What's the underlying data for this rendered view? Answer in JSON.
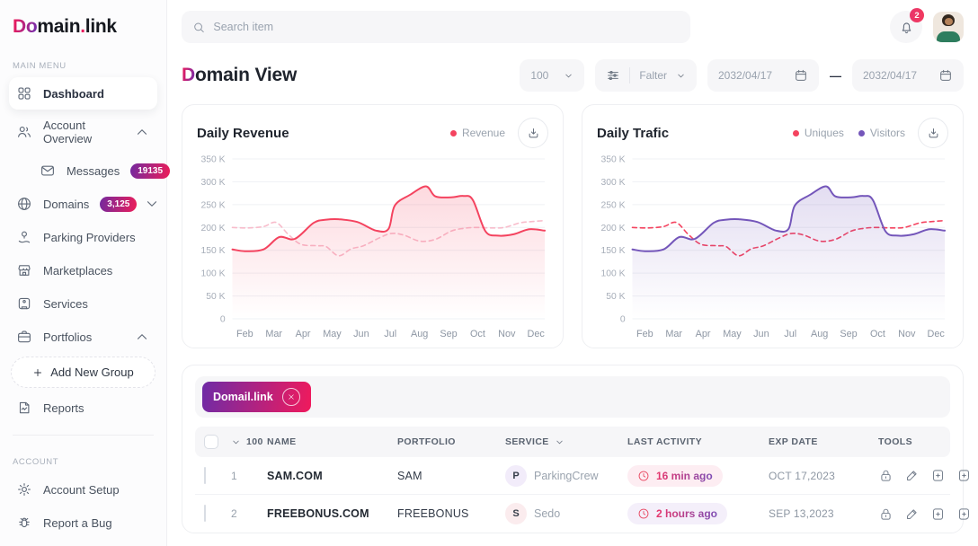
{
  "brand": {
    "logo_grad": "Do",
    "logo_mid": "main",
    "logo_dot": ".",
    "logo_end": "link"
  },
  "topbar": {
    "search_placeholder": "Search item",
    "notification_count": "2"
  },
  "sidebar": {
    "main_menu_label": "MAIN MENU",
    "account_label": "ACCOUNT",
    "dashboard": "Dashboard",
    "account_overview": "Account Overview",
    "messages": "Messages",
    "messages_badge": "19135",
    "domains": "Domains",
    "domains_badge": "3,125",
    "parking_providers": "Parking Providers",
    "marketplaces": "Marketplaces",
    "services": "Services",
    "portfolios": "Portfolios",
    "add_new_group": "Add New Group",
    "reports": "Reports",
    "account_setup": "Account Setup",
    "report_a_bug": "Report a Bug"
  },
  "page": {
    "title_grad": "D",
    "title_rest": "omain View"
  },
  "controls": {
    "page_size": "100",
    "filter_label": "Falter",
    "date_from": "2032/04/17",
    "date_separator": "—",
    "date_to": "2032/04/17"
  },
  "chart_data": [
    {
      "type": "line",
      "title": "Daily Revenue",
      "unit": "K",
      "ylim": [
        0,
        350
      ],
      "y_ticks": [
        "350 K",
        "300 K",
        "250 K",
        "200 K",
        "150 K",
        "100 K",
        "50 K",
        "0"
      ],
      "x_ticks": [
        "Feb",
        "Mar",
        "Apr",
        "May",
        "Jun",
        "Jul",
        "Aug",
        "Sep",
        "Oct",
        "Nov",
        "Dec"
      ],
      "grid": true,
      "legend": [
        {
          "label": "Revenue",
          "color": "#F4435F"
        }
      ],
      "series": [
        {
          "name": "Revenue",
          "style": "solid",
          "color": "#F4435F",
          "fill_from": "rgba(244,67,95,0.20)",
          "fill_to": "rgba(244,67,95,0)",
          "x": [
            0,
            0.4,
            1,
            1.5,
            2,
            2.6,
            3,
            3.4,
            4,
            4.6,
            5,
            5.2,
            5.7,
            6.2,
            6.5,
            7,
            7.4,
            7.7,
            8.1,
            8.5,
            9,
            9.5,
            10
          ],
          "values": [
            152,
            148,
            152,
            179,
            175,
            210,
            217,
            218,
            212,
            193,
            197,
            248,
            272,
            290,
            268,
            266,
            269,
            260,
            192,
            182,
            185,
            196,
            193
          ]
        },
        {
          "name": "",
          "style": "dashed",
          "color": "#F8BCCB",
          "x": [
            0,
            0.5,
            1,
            1.4,
            1.8,
            2.2,
            2.7,
            3,
            3.4,
            3.8,
            4.2,
            4.7,
            5.1,
            5.5,
            6,
            6.5,
            7,
            7.4,
            7.8,
            8.3,
            8.7,
            9.2,
            9.6,
            10
          ],
          "values": [
            200,
            199,
            202,
            211,
            184,
            163,
            160,
            158,
            138,
            153,
            160,
            177,
            187,
            183,
            170,
            174,
            192,
            198,
            200,
            199,
            200,
            210,
            213,
            215
          ]
        }
      ]
    },
    {
      "type": "line",
      "title": "Daily Trafic",
      "unit": "K",
      "ylim": [
        0,
        350
      ],
      "y_ticks": [
        "350 K",
        "300 K",
        "250 K",
        "200 K",
        "150 K",
        "100 K",
        "50 K",
        "0"
      ],
      "x_ticks": [
        "Feb",
        "Mar",
        "Apr",
        "May",
        "Jun",
        "Jul",
        "Aug",
        "Sep",
        "Oct",
        "Nov",
        "Dec"
      ],
      "grid": true,
      "legend": [
        {
          "label": "Uniques",
          "color": "#F4435F"
        },
        {
          "label": "Visitors",
          "color": "#7456BA"
        }
      ],
      "series": [
        {
          "name": "Visitors",
          "style": "solid",
          "color": "#7456BA",
          "fill_from": "rgba(116,86,186,0.20)",
          "fill_to": "rgba(116,86,186,0)",
          "x": [
            0,
            0.4,
            1,
            1.5,
            2,
            2.6,
            3,
            3.4,
            4,
            4.6,
            5,
            5.2,
            5.7,
            6.2,
            6.5,
            7,
            7.4,
            7.7,
            8.1,
            8.5,
            9,
            9.5,
            10
          ],
          "values": [
            152,
            148,
            152,
            179,
            175,
            210,
            217,
            218,
            212,
            193,
            197,
            248,
            272,
            290,
            268,
            266,
            269,
            260,
            192,
            182,
            185,
            196,
            193
          ]
        },
        {
          "name": "Uniques",
          "style": "dashed",
          "color": "#F4435F",
          "x": [
            0,
            0.5,
            1,
            1.4,
            1.8,
            2.2,
            2.7,
            3,
            3.4,
            3.8,
            4.2,
            4.7,
            5.1,
            5.5,
            6,
            6.5,
            7,
            7.4,
            7.8,
            8.3,
            8.7,
            9.2,
            9.6,
            10
          ],
          "values": [
            200,
            199,
            202,
            211,
            184,
            163,
            160,
            158,
            138,
            153,
            160,
            177,
            187,
            183,
            170,
            174,
            192,
            198,
            200,
            199,
            200,
            210,
            213,
            215
          ]
        }
      ]
    }
  ],
  "table": {
    "filter_tag": "Domail.link",
    "select_count": "100",
    "headers": {
      "name": "NAME",
      "portfolio": "PORTFOLIO",
      "service": "SERVICE",
      "last_activity": "LAST ACTIVITY",
      "exp_date": "EXP DATE",
      "tools": "TOOLS"
    },
    "rows": [
      {
        "num": "1",
        "name": "SAM.COM",
        "portfolio": "SAM",
        "service_initial": "P",
        "service": "ParkingCrew",
        "service_avatar_bg": "#F2ECFA",
        "activity": "16 min ago",
        "activity_bg": "#FDEDF2",
        "exp_date": "OCT 17,2023"
      },
      {
        "num": "2",
        "name": "FREEBONUS.COM",
        "portfolio": "FREEBONUS",
        "service_initial": "S",
        "service": "Sedo",
        "service_avatar_bg": "#FBECEE",
        "activity": "2 hours ago",
        "activity_bg": "#F4EFFA",
        "exp_date": "SEP 13,2023"
      }
    ]
  }
}
